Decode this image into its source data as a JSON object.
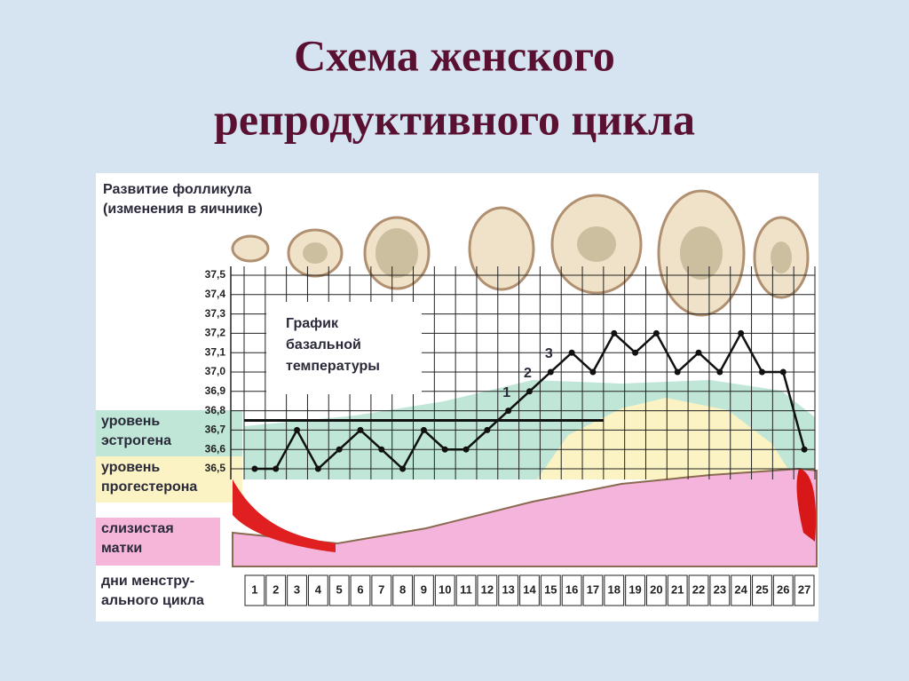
{
  "slide_title": [
    "Схема женского",
    "репродуктивного цикла"
  ],
  "chart_data": {
    "type": "line",
    "title": [
      "График",
      "базальной",
      "температуры"
    ],
    "section_labels": {
      "follicle": [
        "Развитие фолликула",
        "(изменения в яичнике)"
      ],
      "estrogen": [
        "уровень",
        "эстрогена"
      ],
      "progesterone": [
        "уровень",
        "прогестерона"
      ],
      "endometrium": [
        "слизистая",
        "матки"
      ],
      "days": [
        "дни менстру-",
        "ального цикла"
      ]
    },
    "annotations": [
      {
        "text": "1",
        "day": 13
      },
      {
        "text": "2",
        "day": 14
      },
      {
        "text": "3",
        "day": 15
      }
    ],
    "categories": [
      "1",
      "2",
      "3",
      "4",
      "5",
      "6",
      "7",
      "8",
      "9",
      "10",
      "11",
      "12",
      "13",
      "14",
      "15",
      "16",
      "17",
      "18",
      "19",
      "20",
      "21",
      "22",
      "23",
      "24",
      "25",
      "26",
      "27"
    ],
    "series": [
      {
        "color": "#111111",
        "values": [
          36.5,
          36.5,
          36.7,
          36.5,
          36.6,
          36.7,
          36.6,
          36.5,
          36.7,
          36.6,
          36.6,
          36.7,
          36.8,
          36.9,
          37.0,
          37.1,
          37.0,
          37.2,
          37.1,
          37.2,
          37.0,
          37.1,
          37.0,
          37.2,
          37.0,
          37.0,
          36.6
        ]
      }
    ],
    "reference_line": {
      "value": 36.75,
      "color": "#111111"
    },
    "ylim": [
      36.5,
      37.5
    ],
    "yticks": [
      {
        "value": 36.5,
        "label": "36,5"
      },
      {
        "value": 36.6,
        "label": "36,6"
      },
      {
        "value": 36.7,
        "label": "36,7"
      },
      {
        "value": 36.8,
        "label": "36,8"
      },
      {
        "value": 36.9,
        "label": "36,9"
      },
      {
        "value": 37.0,
        "label": "37,0"
      },
      {
        "value": 37.1,
        "label": "37,1"
      },
      {
        "value": 37.2,
        "label": "37,2"
      },
      {
        "value": 37.3,
        "label": "37,3"
      },
      {
        "value": 37.4,
        "label": "37,4"
      },
      {
        "value": 37.5,
        "label": "37,5"
      }
    ],
    "grid": true
  }
}
